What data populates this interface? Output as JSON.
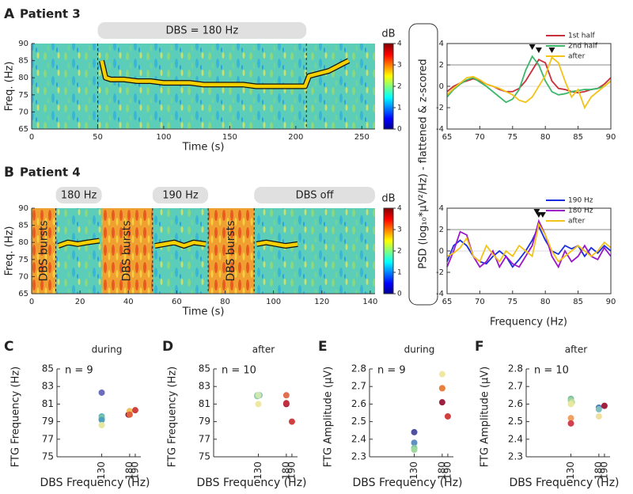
{
  "chart_data": [
    {
      "type": "spectrogram",
      "panel_label": "A",
      "title": "Patient 3",
      "xlabel": "Time (s)",
      "ylabel": "Freq. (Hz)",
      "xlim": [
        0,
        260
      ],
      "xticks": [
        0,
        50,
        100,
        150,
        200,
        250
      ],
      "ylim": [
        65,
        90
      ],
      "yticks": [
        65,
        70,
        75,
        80,
        85,
        90
      ],
      "bands": [
        {
          "label": "DBS = 180 Hz",
          "start": 50,
          "end": 208
        }
      ],
      "dbs_markers": [
        50,
        208
      ],
      "ridge": {
        "x": [
          53,
          56,
          60,
          70,
          80,
          90,
          100,
          110,
          120,
          130,
          140,
          150,
          160,
          170,
          180,
          190,
          200,
          207,
          210,
          215,
          220,
          225,
          230,
          235,
          240
        ],
        "y": [
          85,
          80,
          79.5,
          79.5,
          79,
          79,
          78.5,
          78.5,
          78.5,
          78,
          78,
          78,
          78,
          77.5,
          77.5,
          77.5,
          77.5,
          77.5,
          80.5,
          81,
          81.5,
          82,
          83,
          84,
          85
        ]
      },
      "colorbar": {
        "label": "dB",
        "lim": [
          0,
          4
        ],
        "ticks": [
          0,
          1,
          2,
          3,
          4
        ]
      }
    },
    {
      "type": "line",
      "ylabel": "PSD (log₁₀*μV²/Hz) - flattened & z-scored",
      "x": [
        65,
        66,
        67,
        68,
        69,
        70,
        71,
        72,
        73,
        74,
        75,
        76,
        77,
        78,
        79,
        80,
        81,
        82,
        83,
        84,
        85,
        86,
        87,
        88,
        89,
        90
      ],
      "xlim": [
        65,
        90
      ],
      "xticks": [
        65,
        70,
        75,
        80,
        85,
        90
      ],
      "ylim": [
        -4,
        4
      ],
      "yticks": [
        -4,
        -2,
        0,
        2,
        4
      ],
      "threshold": 2,
      "peaks": [
        78,
        79,
        81
      ],
      "series": [
        {
          "name": "1st half",
          "color": "#c8303a",
          "values": [
            -0.5,
            0,
            0.3,
            0.5,
            0.7,
            0.5,
            0.2,
            0,
            -0.3,
            -0.5,
            -0.5,
            -0.2,
            0.5,
            1.5,
            2.5,
            2.2,
            0.5,
            -0.2,
            -0.3,
            -0.5,
            -0.6,
            -0.5,
            -0.3,
            -0.2,
            0.2,
            0.8
          ]
        },
        {
          "name": "2nd half",
          "color": "#3cb86a",
          "values": [
            -1,
            -0.3,
            0.2,
            0.6,
            0.8,
            0.4,
            0,
            -0.5,
            -1,
            -1.5,
            -1.2,
            -0.3,
            1.5,
            2.8,
            2,
            0.5,
            -0.5,
            -0.8,
            -0.7,
            -0.5,
            -0.4,
            -0.3,
            -0.3,
            -0.2,
            0,
            0.5
          ]
        },
        {
          "name": "after",
          "color": "#f2c318",
          "values": [
            -0.8,
            -0.2,
            0.3,
            0.8,
            0.9,
            0.6,
            0.2,
            0,
            -0.2,
            -0.5,
            -0.8,
            -1.3,
            -1.5,
            -1,
            0,
            1,
            2.7,
            2.2,
            0.5,
            -1,
            -0.3,
            -2,
            -1,
            -0.5,
            0,
            0.5
          ]
        }
      ]
    },
    {
      "type": "spectrogram",
      "panel_label": "B",
      "title": "Patient 4",
      "xlabel": "Time (s)",
      "ylabel": "Freq. (Hz)",
      "xlim": [
        0,
        142
      ],
      "xticks": [
        0,
        20,
        40,
        60,
        80,
        100,
        120,
        140
      ],
      "ylim": [
        65,
        90
      ],
      "yticks": [
        65,
        70,
        75,
        80,
        85,
        90
      ],
      "bands": [
        {
          "label": "180 Hz",
          "start": 10,
          "end": 29
        },
        {
          "label": "190 Hz",
          "start": 50,
          "end": 73
        },
        {
          "label": "DBS off",
          "start": 92,
          "end": 142
        }
      ],
      "bursts": [
        {
          "label": "DBS bursts",
          "start": 0,
          "end": 10
        },
        {
          "label": "DBS bursts",
          "start": 29,
          "end": 50
        },
        {
          "label": "DBS bursts",
          "start": 73,
          "end": 92
        }
      ],
      "dbs_markers": [
        10,
        50,
        73,
        92
      ],
      "ridge": {
        "x": [
          11,
          15,
          19,
          23,
          28,
          40,
          51,
          55,
          59,
          63,
          67,
          72,
          80,
          93,
          97,
          101,
          105,
          110
        ],
        "y": [
          79,
          80,
          79.5,
          80,
          80.5,
          null,
          79,
          79.5,
          80,
          79,
          80,
          79.5,
          null,
          79.5,
          80,
          79.5,
          79,
          79.5
        ]
      },
      "colorbar": {
        "label": "dB",
        "lim": [
          0,
          4
        ],
        "ticks": [
          0,
          1,
          2,
          3,
          4
        ]
      }
    },
    {
      "type": "line",
      "xlabel": "Frequency (Hz)",
      "x": [
        65,
        66,
        67,
        68,
        69,
        70,
        71,
        72,
        73,
        74,
        75,
        76,
        77,
        78,
        79,
        80,
        81,
        82,
        83,
        84,
        85,
        86,
        87,
        88,
        89,
        90
      ],
      "xlim": [
        65,
        90
      ],
      "xticks": [
        65,
        70,
        75,
        80,
        85,
        90
      ],
      "ylim": [
        -4,
        4
      ],
      "yticks": [
        -4,
        -2,
        0,
        2,
        4
      ],
      "threshold": 2,
      "peaks": [
        78.7,
        79,
        79.6
      ],
      "series": [
        {
          "name": "190 Hz",
          "color": "#1a2ee0",
          "values": [
            -1,
            0.5,
            1,
            0.5,
            -0.5,
            -1,
            -1.2,
            -0.5,
            0,
            -0.5,
            -1.5,
            -0.8,
            0,
            1,
            2.3,
            1,
            0,
            -0.3,
            0.5,
            0.2,
            0.5,
            -0.5,
            0.3,
            -0.2,
            0.5,
            0
          ]
        },
        {
          "name": "180 Hz",
          "color": "#9a18c8",
          "values": [
            -1.5,
            0,
            1.8,
            1.5,
            -0.5,
            -1.5,
            -1,
            0,
            -1.5,
            -0.5,
            -1.2,
            -1.5,
            -0.5,
            0.5,
            2.8,
            1.5,
            -0.5,
            -1.5,
            0,
            -1,
            -0.5,
            0.5,
            -0.5,
            -0.8,
            0.3,
            -0.5
          ]
        },
        {
          "name": "after",
          "color": "#f2c318",
          "values": [
            -0.5,
            -0.2,
            0.3,
            1.2,
            -0.5,
            -1,
            0.5,
            -0.3,
            -1,
            0,
            -0.5,
            0.5,
            0,
            -0.5,
            2.5,
            1.5,
            0,
            -1,
            -0.5,
            0,
            0.5,
            0,
            -0.5,
            0,
            0.8,
            0.3
          ]
        }
      ]
    },
    {
      "type": "scatter",
      "panel_label": "C",
      "title": "during",
      "annotation": "n = 9",
      "xlabel": "DBS Frequency (Hz)",
      "ylabel": "FTG Frequency (Hz)",
      "xlim": [
        50,
        200
      ],
      "xticks": [
        130,
        180,
        190
      ],
      "ylim": [
        75,
        85
      ],
      "yticks": [
        75,
        77,
        79,
        81,
        83,
        85
      ],
      "points": {
        "x": [
          130,
          130,
          130,
          130,
          130,
          178,
          180,
          180,
          190
        ],
        "y": [
          82.3,
          79.6,
          79.4,
          79.2,
          78.6,
          79.8,
          80.2,
          79.8,
          80.3
        ],
        "colors": [
          "#6c6cc0",
          "#5fb8c0",
          "#80c8a0",
          "#4ea0c0",
          "#e6e8a0",
          "#8b1a3a",
          "#f0c060",
          "#e06040",
          "#d04040"
        ]
      }
    },
    {
      "type": "scatter",
      "panel_label": "D",
      "title": "after",
      "annotation": "n = 10",
      "xlabel": "DBS Frequency (Hz)",
      "ylabel": "FTG Frequency (Hz)",
      "xlim": [
        50,
        200
      ],
      "xticks": [
        130,
        180,
        190
      ],
      "ylim": [
        75,
        85
      ],
      "yticks": [
        75,
        77,
        79,
        81,
        83,
        85
      ],
      "points": {
        "x": [
          128,
          130,
          132,
          130,
          128,
          130,
          180,
          180,
          180,
          190
        ],
        "y": [
          82,
          82,
          82,
          81,
          81.9,
          82,
          82,
          81,
          81.1,
          79
        ],
        "colors": [
          "#a0d0b0",
          "#c0e0a0",
          "#80c0c0",
          "#f0e8a0",
          "#90c8a8",
          "#d0e8b0",
          "#e07050",
          "#a02040",
          "#c03040",
          "#d04040"
        ]
      }
    },
    {
      "type": "scatter",
      "panel_label": "E",
      "title": "during",
      "annotation": "n = 9",
      "xlabel": "DBS Frequency (Hz)",
      "ylabel": "FTG Amplitude (μV)",
      "xlim": [
        50,
        200
      ],
      "xticks": [
        130,
        180,
        190
      ],
      "ylim": [
        2.3,
        2.8
      ],
      "yticks": [
        2.3,
        2.4,
        2.5,
        2.6,
        2.7,
        2.8
      ],
      "points": {
        "x": [
          130,
          130,
          130,
          130,
          180,
          180,
          180,
          180,
          190
        ],
        "y": [
          2.44,
          2.38,
          2.35,
          2.34,
          2.77,
          2.69,
          2.69,
          2.61,
          2.53
        ],
        "colors": [
          "#5050a0",
          "#6090c0",
          "#80c8a0",
          "#a0d8a0",
          "#f0e8a0",
          "#f0a040",
          "#e88040",
          "#a02040",
          "#d04040"
        ]
      }
    },
    {
      "type": "scatter",
      "panel_label": "F",
      "title": "after",
      "annotation": "n = 10",
      "xlabel": "DBS Frequency (Hz)",
      "ylabel": "FTG Amplitude (μV)",
      "xlim": [
        50,
        200
      ],
      "xticks": [
        130,
        180,
        190
      ],
      "ylim": [
        2.3,
        2.8
      ],
      "yticks": [
        2.3,
        2.4,
        2.5,
        2.6,
        2.7,
        2.8
      ],
      "points": {
        "x": [
          130,
          130,
          132,
          130,
          130,
          130,
          180,
          180,
          180,
          190
        ],
        "y": [
          2.63,
          2.62,
          2.61,
          2.6,
          2.52,
          2.49,
          2.58,
          2.57,
          2.53,
          2.59
        ],
        "colors": [
          "#80c0a0",
          "#a0d0a0",
          "#c0e0a0",
          "#e8e8a0",
          "#f0a060",
          "#d04050",
          "#5080c0",
          "#80c0c0",
          "#f0e0a0",
          "#a02040"
        ]
      }
    }
  ]
}
